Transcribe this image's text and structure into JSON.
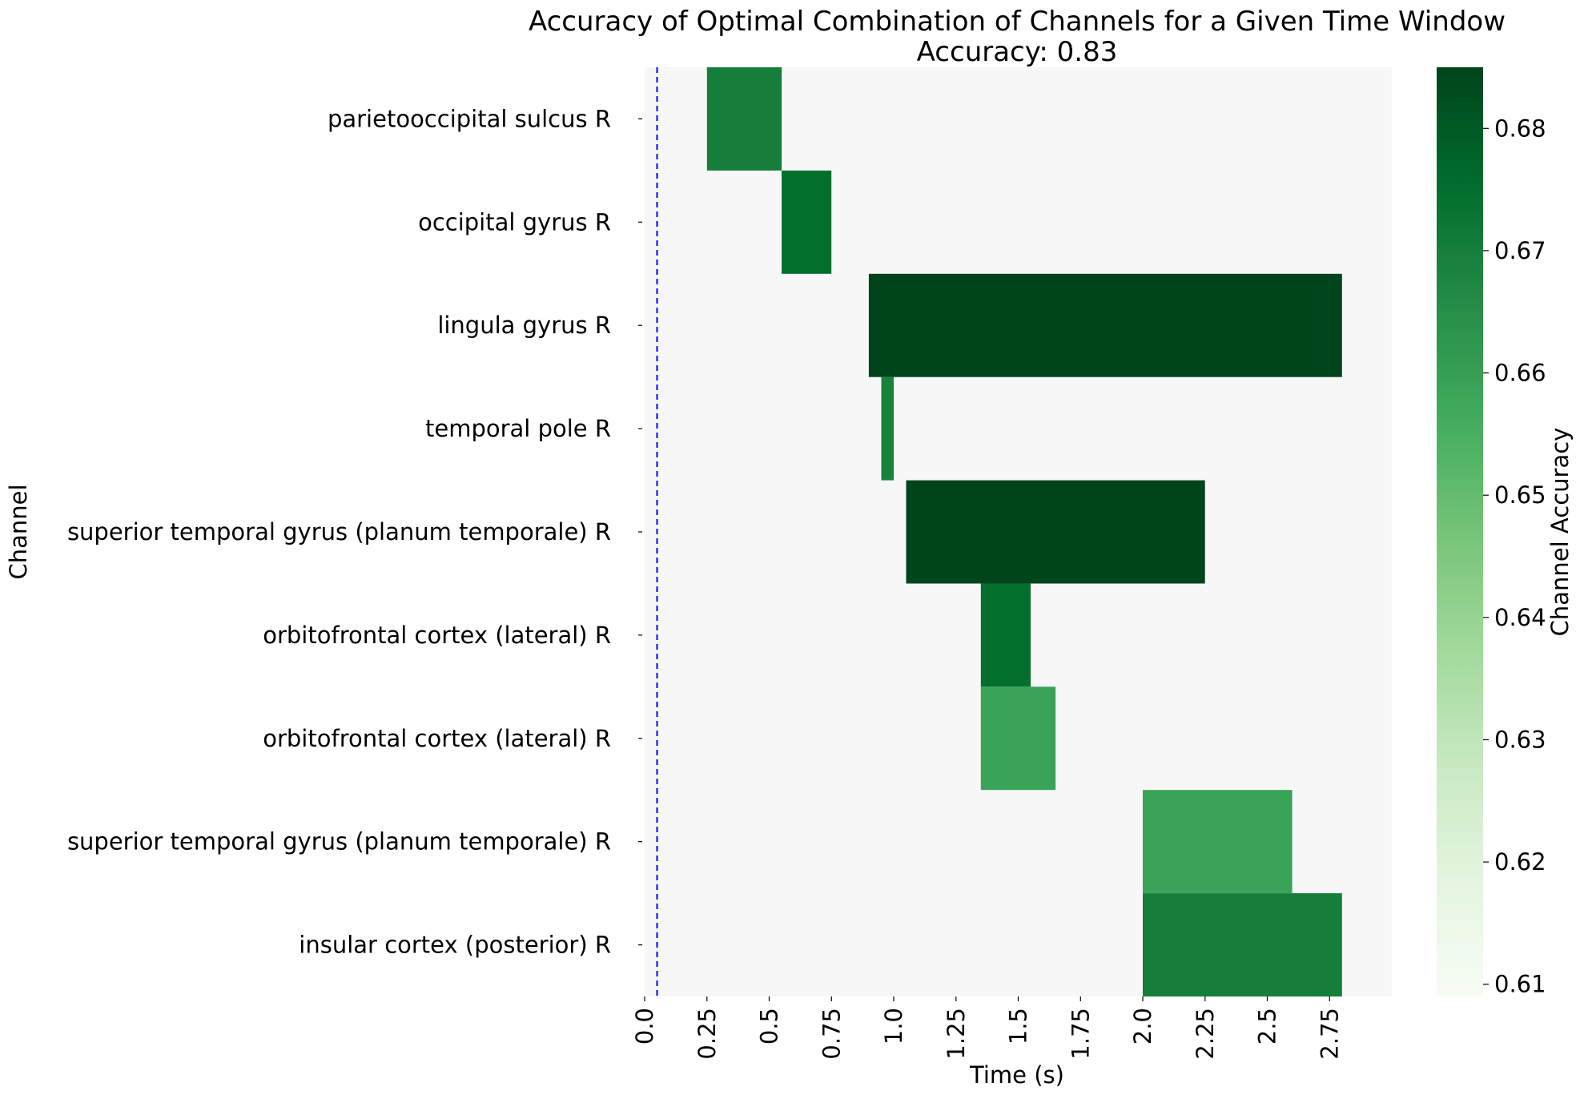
{
  "chart_data": {
    "type": "heatmap",
    "title": "Accuracy of Optimal Combination of Channels for a Given Time Window",
    "subtitle": "Accuracy: 0.83",
    "xlabel": "Time (s)",
    "ylabel": "Channel",
    "colorbar_label": "Channel Accuracy",
    "xlim": [
      0,
      3.0
    ],
    "x_tick_labels": [
      "0.0",
      "0.25",
      "0.5",
      "0.75",
      "1.0",
      "1.25",
      "1.5",
      "1.75",
      "2.0",
      "2.25",
      "2.5",
      "2.75"
    ],
    "x_tick_values": [
      0,
      0.25,
      0.5,
      0.75,
      1.0,
      1.25,
      1.5,
      1.75,
      2.0,
      2.25,
      2.5,
      2.75
    ],
    "colorbar_range": [
      0.609,
      0.685
    ],
    "colorbar_ticks": [
      "0.61",
      "0.62",
      "0.63",
      "0.64",
      "0.65",
      "0.66",
      "0.67",
      "0.68"
    ],
    "colorbar_tick_values": [
      0.61,
      0.62,
      0.63,
      0.64,
      0.65,
      0.66,
      0.67,
      0.68
    ],
    "onset_marker_time": 0.05,
    "background_color": "#f7f7f7",
    "channels": [
      {
        "label": "parietooccipital sulcus R",
        "start": 0.25,
        "end": 0.55,
        "accuracy": 0.67
      },
      {
        "label": "occipital gyrus R",
        "start": 0.55,
        "end": 0.75,
        "accuracy": 0.675
      },
      {
        "label": "lingula gyrus R",
        "start": 0.9,
        "end": 2.8,
        "accuracy": 0.685
      },
      {
        "label": "temporal pole R",
        "start": 0.95,
        "end": 1.0,
        "accuracy": 0.669
      },
      {
        "label": "superior temporal gyrus (planum temporale) R",
        "start": 1.05,
        "end": 2.25,
        "accuracy": 0.685
      },
      {
        "label": "orbitofrontal cortex (lateral) R",
        "start": 1.35,
        "end": 1.55,
        "accuracy": 0.675
      },
      {
        "label": "orbitofrontal cortex (lateral) R",
        "start": 1.35,
        "end": 1.65,
        "accuracy": 0.659
      },
      {
        "label": "superior temporal gyrus (planum temporale) R",
        "start": 2.0,
        "end": 2.6,
        "accuracy": 0.659
      },
      {
        "label": "insular cortex (posterior) R",
        "start": 2.0,
        "end": 2.8,
        "accuracy": 0.67
      }
    ]
  }
}
